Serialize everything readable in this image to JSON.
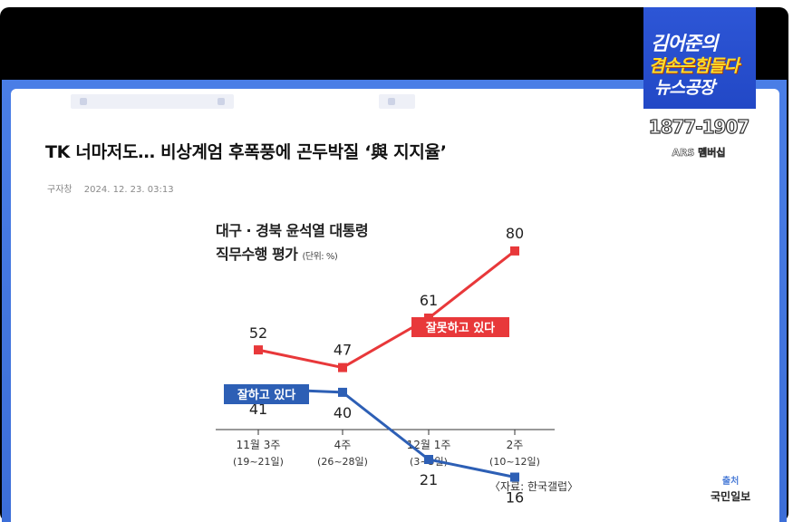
{
  "article": {
    "headline": "TK 너마저도… 비상계엄 후폭풍에 곤두박질 ‘與 지지율’",
    "author": "구자창",
    "datetime": "2024. 12. 23. 03:13"
  },
  "chart_data": {
    "type": "line",
    "title_line1": "대구 · 경북 윤석열 대통령",
    "title_line2": "직무수행 평가",
    "unit": "(단위: %)",
    "categories": [
      "11월 3주",
      "4주",
      "12월 1주",
      "2주"
    ],
    "category_subs": [
      "(19~21일)",
      "(26~28일)",
      "(3~5일)",
      "(10~12일)"
    ],
    "series": [
      {
        "name": "잘못하고 있다",
        "values": [
          52,
          47,
          61,
          80
        ],
        "color": "#e8383a"
      },
      {
        "name": "잘하고 있다",
        "values": [
          41,
          40,
          21,
          16
        ],
        "color": "#2d5fb5"
      }
    ],
    "ylim": [
      0,
      100
    ]
  },
  "source_note": "〈자료: 한국갤럽〉",
  "credit": {
    "label": "출처",
    "name": "국민일보"
  },
  "channel": {
    "line1": "김어준의",
    "line2": "겸손은힘들다",
    "line3": "뉴스공장",
    "phone": "1877-1907",
    "ars": "ARS 멤버십"
  }
}
